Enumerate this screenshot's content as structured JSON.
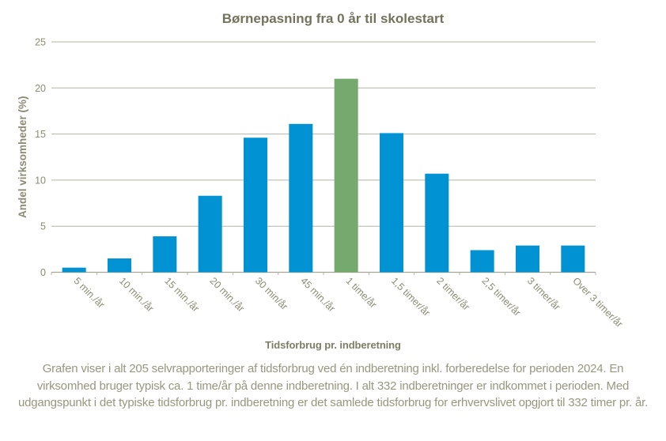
{
  "title": "Børnepasning fra 0 år til skolestart",
  "chart_data": {
    "type": "bar",
    "title": "Børnepasning fra 0 år til skolestart",
    "categories": [
      "5 min./år",
      "10 min./år",
      "15 min./år",
      "20 min./år",
      "30 min/år",
      "45 min./år",
      "1 time/år",
      "1,5 timer/år",
      "2 timer/år",
      "2,5 timer/år",
      "3 timer/år",
      "Over 3 timer/år"
    ],
    "values": [
      0.5,
      1.5,
      3.9,
      8.3,
      14.6,
      16.1,
      21.0,
      15.1,
      10.7,
      2.4,
      2.9,
      2.9
    ],
    "highlight_index": 6,
    "highlight_category": "1 time/år",
    "xlabel": "Tidsforbrug pr. indberetning",
    "ylabel": "Andel virksomheder (%)",
    "ylim": [
      0,
      25
    ],
    "yticks": [
      0,
      5,
      10,
      15,
      20,
      25
    ],
    "grid": true,
    "legend": "none",
    "colors": {
      "bar": "#0092d2",
      "highlight": "#76a96e",
      "title_text": "#73735c",
      "axis_text": "#8b8b74",
      "gridline": "#b3b3a5",
      "baseline": "#a5a597"
    }
  },
  "footnote": "Grafen viser i alt 205 selvrapporteringer af tidsforbrug ved én indberetning inkl. forberedelse for perioden 2024. En virksomhed bruger typisk ca. 1 time/år på denne indberetning. I alt 332 indberetninger er indkommet i perioden. Med udgangspunkt i det typiske tidsforbrug pr. indberetning er det samlede tidsforbrug for erhvervslivet opgjort til 332 timer pr. år."
}
